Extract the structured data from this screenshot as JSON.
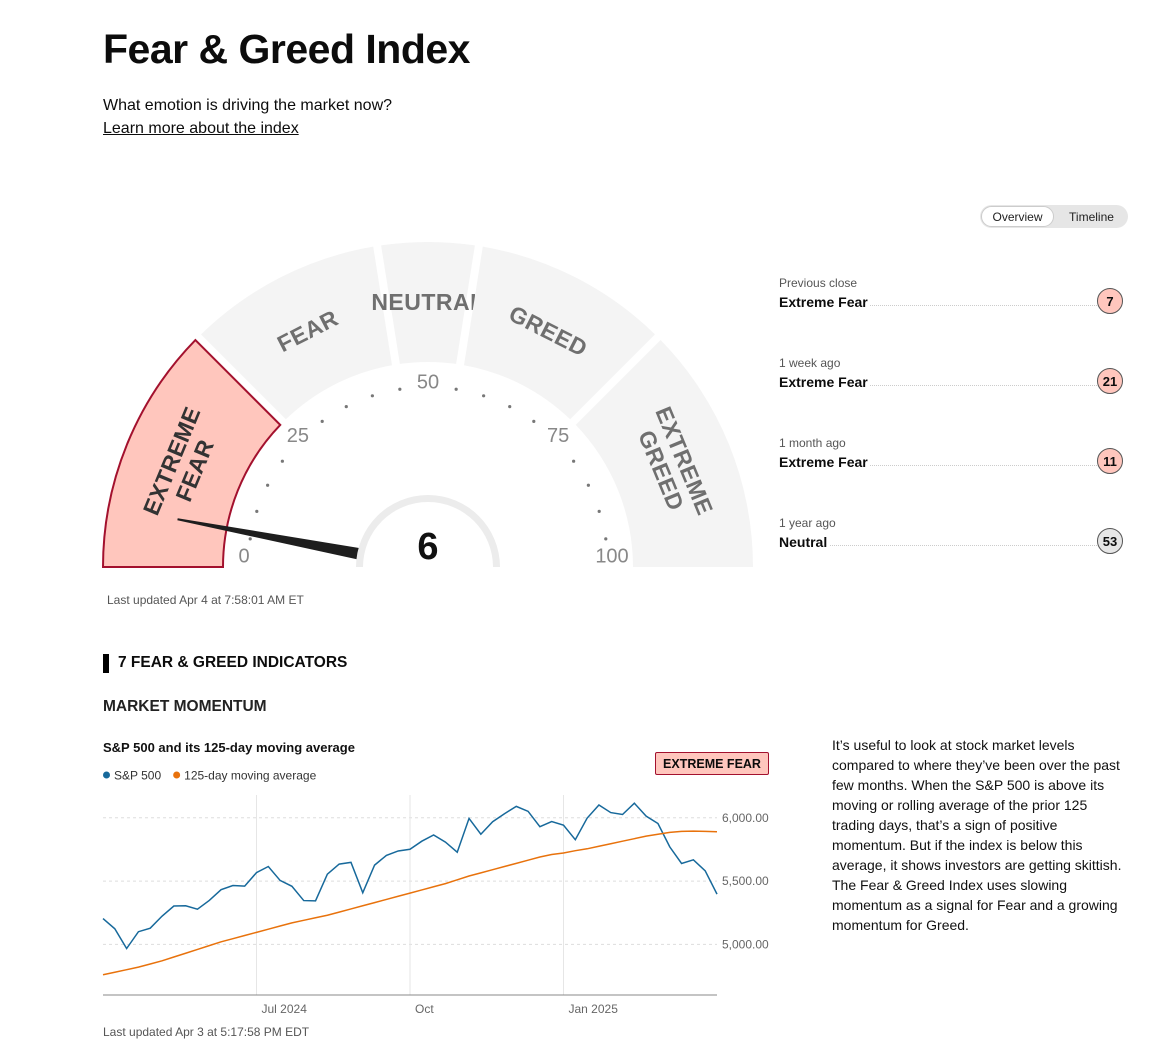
{
  "header": {
    "title": "Fear & Greed Index",
    "subtitle": "What emotion is driving the market now?",
    "link": "Learn more about the index"
  },
  "tabs": {
    "items": [
      "Overview",
      "Timeline"
    ],
    "active": 0
  },
  "gauge": {
    "value": 6,
    "range": [
      0,
      100
    ],
    "ticks": [
      0,
      25,
      50,
      75,
      100
    ],
    "segment_color": "#f4f4f4",
    "active_color": "#ffc6bd",
    "active_border": "#a3112e",
    "segments": [
      {
        "label": [
          "EXTREME",
          "FEAR"
        ],
        "from": 0,
        "to": 25
      },
      {
        "label": [
          "FEAR"
        ],
        "from": 25,
        "to": 45
      },
      {
        "label": [
          "NEUTRAL"
        ],
        "from": 45,
        "to": 55
      },
      {
        "label": [
          "GREED"
        ],
        "from": 55,
        "to": 75
      },
      {
        "label": [
          "EXTREME",
          "GREED"
        ],
        "from": 75,
        "to": 100
      }
    ],
    "updated": "Last updated Apr 4 at 7:58:01 AM ET"
  },
  "history": [
    {
      "period": "Previous close",
      "rating": "Extreme Fear",
      "value": 7,
      "color": "#ffc6bd"
    },
    {
      "period": "1 week ago",
      "rating": "Extreme Fear",
      "value": 21,
      "color": "#ffc6bd"
    },
    {
      "period": "1 month ago",
      "rating": "Extreme Fear",
      "value": 11,
      "color": "#ffc6bd"
    },
    {
      "period": "1 year ago",
      "rating": "Neutral",
      "value": 53,
      "color": "#e6e6e6"
    }
  ],
  "section": "7 FEAR & GREED INDICATORS",
  "indicator": {
    "title": "MARKET MOMENTUM",
    "badge": "EXTREME FEAR",
    "description": "It’s useful to look at stock market levels compared to where they’ve been over the past few months. When the S&P 500 is above its moving or rolling average of the prior 125 trading days, that’s a sign of positive momentum. But if the index is below this average, it shows investors are getting skittish. The Fear & Greed Index uses slowing momentum as a signal for Fear and a growing momentum for Greed.",
    "updated": "Last updated Apr 3 at 5:17:58 PM EDT"
  },
  "chart_data": {
    "type": "line",
    "title": "S&P 500 and its 125-day moving average",
    "categories": [
      null,
      null,
      null,
      null,
      null,
      null,
      null,
      null,
      null,
      null,
      null,
      null,
      null,
      "Jul 2024",
      null,
      null,
      null,
      null,
      null,
      null,
      null,
      null,
      null,
      null,
      null,
      null,
      "Oct",
      null,
      null,
      null,
      null,
      null,
      null,
      null,
      null,
      null,
      null,
      null,
      null,
      "Jan 2025",
      null,
      null,
      null,
      null,
      null,
      null,
      null,
      null,
      null,
      null,
      null,
      null,
      null
    ],
    "series": [
      {
        "name": "S&P 500",
        "color": "#17699b",
        "values": [
          5204,
          5123,
          4967,
          5100,
          5128,
          5223,
          5303,
          5305,
          5278,
          5347,
          5432,
          5465,
          5460,
          5567,
          5615,
          5505,
          5459,
          5346,
          5344,
          5554,
          5634,
          5648,
          5408,
          5626,
          5703,
          5738,
          5751,
          5815,
          5864,
          5808,
          5728,
          5995,
          5870,
          5969,
          6032,
          6090,
          6051,
          5930,
          5970,
          5942,
          5827,
          5997,
          6101,
          6041,
          6026,
          6115,
          6013,
          5955,
          5770,
          5639,
          5668,
          5581,
          5397
        ]
      },
      {
        "name": "125-day moving average",
        "color": "#e8720c",
        "values": [
          4760,
          4780,
          4800,
          4820,
          4845,
          4870,
          4900,
          4930,
          4960,
          4990,
          5020,
          5045,
          5070,
          5095,
          5120,
          5145,
          5170,
          5190,
          5210,
          5230,
          5255,
          5280,
          5305,
          5330,
          5355,
          5380,
          5405,
          5430,
          5455,
          5480,
          5510,
          5540,
          5565,
          5590,
          5615,
          5640,
          5665,
          5690,
          5710,
          5722,
          5740,
          5755,
          5775,
          5795,
          5815,
          5835,
          5855,
          5870,
          5885,
          5893,
          5895,
          5893,
          5890
        ]
      }
    ],
    "ylim": [
      4600,
      6180
    ],
    "yticks": [
      {
        "value": 5000,
        "label": "5,000.00"
      },
      {
        "value": 5500,
        "label": "5,500.00"
      },
      {
        "value": 6000,
        "label": "6,000.00"
      }
    ],
    "grid": true
  }
}
